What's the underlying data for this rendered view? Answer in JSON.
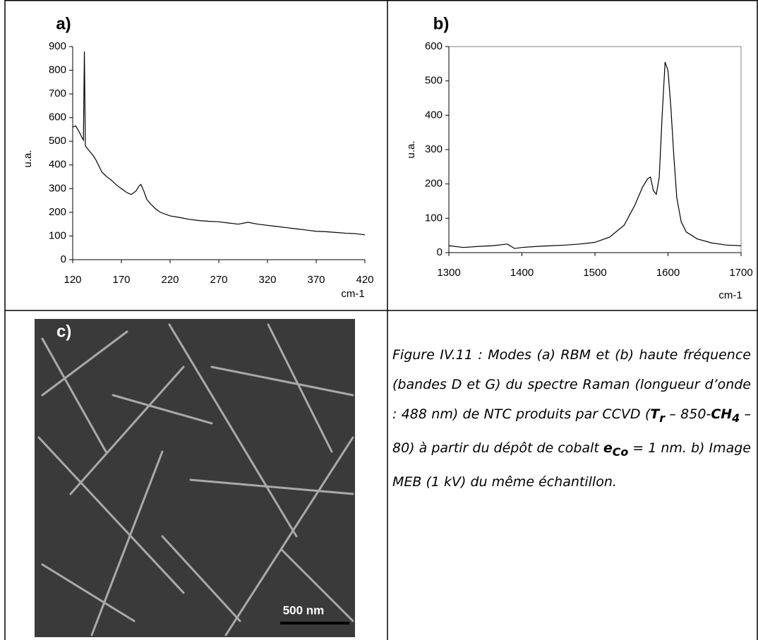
{
  "chart_data": [
    {
      "type": "line",
      "title": "a)",
      "y_label": "u.a.",
      "x_label": "cm-1",
      "color": "#000000",
      "frame": false,
      "xlim": [
        120,
        420
      ],
      "xticks": [
        120,
        170,
        220,
        270,
        320,
        370,
        420
      ],
      "ylim": [
        0,
        900
      ],
      "yticks": [
        0,
        100,
        200,
        300,
        400,
        500,
        600,
        700,
        800,
        900
      ],
      "x": [
        120,
        123,
        126,
        129,
        131,
        132,
        133,
        135,
        138,
        141,
        144,
        147,
        150,
        155,
        160,
        165,
        170,
        175,
        180,
        185,
        188,
        190,
        193,
        196,
        200,
        205,
        210,
        220,
        230,
        240,
        250,
        260,
        270,
        280,
        290,
        300,
        310,
        320,
        330,
        340,
        350,
        360,
        370,
        380,
        390,
        400,
        410,
        420
      ],
      "values": [
        560,
        565,
        545,
        520,
        505,
        880,
        480,
        470,
        455,
        440,
        420,
        395,
        370,
        350,
        335,
        315,
        300,
        285,
        275,
        290,
        310,
        318,
        290,
        255,
        235,
        215,
        200,
        185,
        178,
        170,
        165,
        162,
        160,
        155,
        150,
        158,
        150,
        145,
        140,
        135,
        130,
        125,
        120,
        118,
        115,
        112,
        110,
        105
      ]
    },
    {
      "type": "line",
      "title": "b)",
      "y_label": "u.a.",
      "x_label": "cm-1",
      "color": "#000000",
      "frame": true,
      "xlim": [
        1300,
        1700
      ],
      "xticks": [
        1300,
        1400,
        1500,
        1600,
        1700
      ],
      "ylim": [
        0,
        600
      ],
      "yticks": [
        0,
        100,
        200,
        300,
        400,
        500,
        600
      ],
      "x": [
        1300,
        1320,
        1340,
        1360,
        1380,
        1390,
        1400,
        1420,
        1440,
        1460,
        1480,
        1500,
        1520,
        1540,
        1555,
        1565,
        1572,
        1576,
        1580,
        1584,
        1588,
        1592,
        1596,
        1600,
        1604,
        1608,
        1612,
        1618,
        1625,
        1640,
        1660,
        1680,
        1700
      ],
      "values": [
        20,
        15,
        18,
        20,
        25,
        12,
        15,
        18,
        20,
        22,
        25,
        30,
        45,
        80,
        140,
        190,
        215,
        220,
        180,
        170,
        220,
        400,
        555,
        530,
        420,
        280,
        160,
        90,
        60,
        40,
        28,
        22,
        20
      ]
    }
  ],
  "image": {
    "label": "c)",
    "scale_bar": "500 nm"
  },
  "caption": [
    "Figure IV.11 : Modes (a) RBM et (b) haute fréquence (bandes D et G) du spectre Raman (longueur d’onde : 488 nm) de NTC produits par CCVD (",
    "T",
    "r",
    " – 850-",
    "CH",
    "4",
    " – 80) à partir du dépôt de cobalt ",
    "e",
    "Co",
    " = 1 nm. b) Image MEB (1 kV) du même échantillon."
  ]
}
